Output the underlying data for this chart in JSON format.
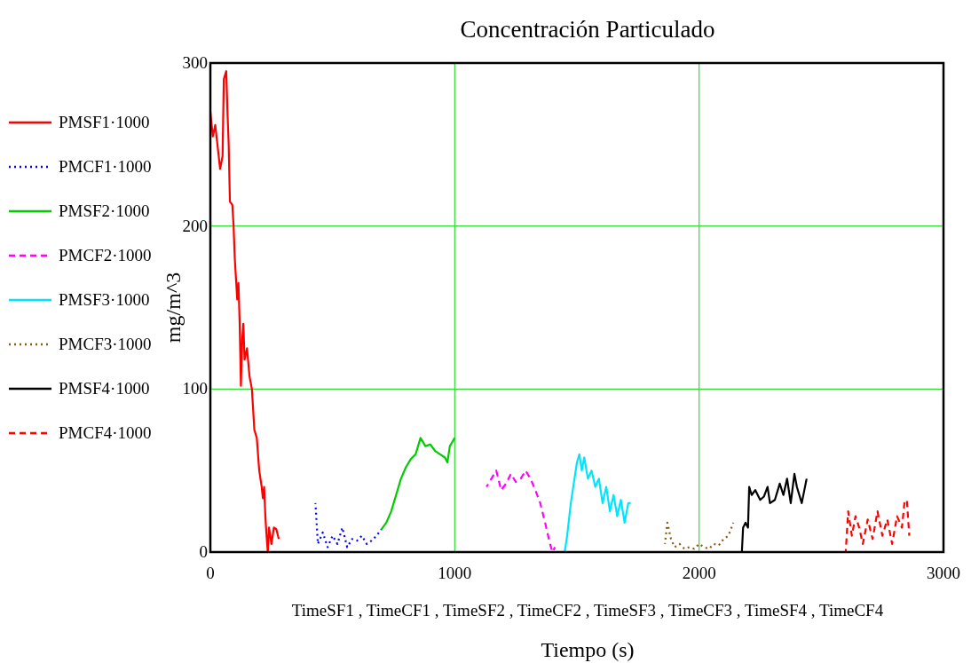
{
  "chart_data": {
    "type": "line",
    "title": "Concentración Particulado",
    "xlabel": "Tiempo (s)",
    "ylabel": "mg/m^3",
    "annotations": [
      "TimeSF1 , TimeCF1 , TimeSF2 , TimeCF2 , TimeSF3 , TimeCF3 , TimeSF4 , TimeCF4"
    ],
    "xlim": [
      0,
      3000
    ],
    "ylim": [
      0,
      300
    ],
    "xticks": [
      0,
      1000,
      2000,
      3000
    ],
    "yticks": [
      0,
      100,
      200,
      300
    ],
    "grid": true,
    "legend": "left",
    "series": [
      {
        "name": "PMSF1·1000",
        "color": "#ff0000",
        "line_style": "solid",
        "x": [
          0,
          10,
          20,
          40,
          50,
          55,
          65,
          70,
          75,
          80,
          90,
          95,
          100,
          110,
          115,
          120,
          125,
          130,
          135,
          140,
          150,
          160,
          170,
          180,
          190,
          200,
          210,
          215,
          220,
          225,
          230,
          235,
          240,
          250,
          260,
          270,
          280
        ],
        "values": [
          270,
          255,
          262,
          235,
          243,
          290,
          295,
          270,
          250,
          215,
          213,
          200,
          180,
          155,
          165,
          140,
          102,
          130,
          140,
          118,
          125,
          108,
          100,
          75,
          70,
          50,
          40,
          33,
          40,
          22,
          10,
          0,
          15,
          5,
          15,
          14,
          8
        ]
      },
      {
        "name": "PMCF1·1000",
        "color": "#0000ff",
        "line_style": "dotted",
        "x": [
          430,
          440,
          460,
          480,
          500,
          520,
          540,
          560,
          580,
          600,
          620,
          640,
          660,
          680,
          700
        ],
        "values": [
          30,
          5,
          12,
          3,
          10,
          5,
          15,
          3,
          8,
          7,
          10,
          5,
          7,
          10,
          14
        ]
      },
      {
        "name": "PMSF2·1000",
        "color": "#00cc00",
        "line_style": "solid",
        "x": [
          700,
          720,
          740,
          760,
          780,
          800,
          820,
          840,
          860,
          880,
          900,
          920,
          940,
          960,
          970,
          980,
          1000
        ],
        "values": [
          14,
          18,
          25,
          35,
          45,
          52,
          57,
          60,
          70,
          65,
          66,
          62,
          60,
          58,
          55,
          65,
          70
        ]
      },
      {
        "name": "PMCF2·1000",
        "color": "#ff00ff",
        "line_style": "dashed",
        "x": [
          1130,
          1150,
          1170,
          1190,
          1210,
          1230,
          1250,
          1270,
          1290,
          1310,
          1330,
          1350,
          1370,
          1390,
          1400,
          1410
        ],
        "values": [
          40,
          45,
          50,
          38,
          42,
          48,
          43,
          45,
          50,
          45,
          38,
          30,
          18,
          5,
          0,
          3
        ]
      },
      {
        "name": "PMSF3·1000",
        "color": "#00e5ff",
        "line_style": "solid",
        "x": [
          1450,
          1460,
          1475,
          1490,
          1500,
          1510,
          1520,
          1530,
          1545,
          1560,
          1575,
          1590,
          1605,
          1620,
          1635,
          1650,
          1665,
          1680,
          1695,
          1710,
          1720
        ],
        "values": [
          0,
          10,
          30,
          45,
          55,
          60,
          50,
          58,
          45,
          50,
          40,
          45,
          30,
          40,
          25,
          35,
          22,
          32,
          18,
          30,
          30
        ]
      },
      {
        "name": "PMCF3·1000",
        "color": "#8b5a14",
        "line_style": "dotted",
        "x": [
          1860,
          1870,
          1885,
          1900,
          1920,
          1940,
          1960,
          1980,
          2000,
          2020,
          2040,
          2060,
          2080,
          2100,
          2120,
          2140
        ],
        "values": [
          5,
          18,
          8,
          3,
          5,
          2,
          3,
          2,
          5,
          3,
          2,
          5,
          4,
          8,
          10,
          18
        ]
      },
      {
        "name": "PMSF4·1000",
        "color": "#000000",
        "line_style": "solid",
        "x": [
          2175,
          2180,
          2190,
          2200,
          2205,
          2215,
          2230,
          2250,
          2265,
          2280,
          2290,
          2310,
          2330,
          2345,
          2360,
          2375,
          2390,
          2400,
          2420,
          2440
        ],
        "values": [
          0,
          15,
          18,
          15,
          40,
          35,
          38,
          32,
          34,
          40,
          30,
          32,
          42,
          35,
          45,
          30,
          48,
          40,
          30,
          45
        ]
      },
      {
        "name": "PMCF4·1000",
        "color": "#ff0000",
        "line_style": "dashed",
        "x": [
          2600,
          2610,
          2625,
          2640,
          2655,
          2670,
          2690,
          2710,
          2730,
          2750,
          2770,
          2790,
          2810,
          2830,
          2840,
          2850,
          2860
        ],
        "values": [
          0,
          25,
          10,
          22,
          15,
          5,
          20,
          8,
          25,
          10,
          20,
          5,
          22,
          15,
          30,
          32,
          10
        ]
      }
    ]
  }
}
